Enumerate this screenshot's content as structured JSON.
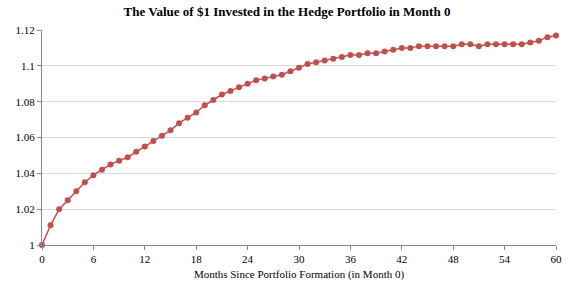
{
  "chart_data": {
    "type": "line",
    "title": "The Value of $1 Invested in the Hedge Portfolio in Month 0",
    "x_label": "Months Since Portfolio Formation (in Month 0)",
    "x": [
      0,
      1,
      2,
      3,
      4,
      5,
      6,
      7,
      8,
      9,
      10,
      11,
      12,
      13,
      14,
      15,
      16,
      17,
      18,
      19,
      20,
      21,
      22,
      23,
      24,
      25,
      26,
      27,
      28,
      29,
      30,
      31,
      32,
      33,
      34,
      35,
      36,
      37,
      38,
      39,
      40,
      41,
      42,
      43,
      44,
      45,
      46,
      47,
      48,
      49,
      50,
      51,
      52,
      53,
      54,
      55,
      56,
      57,
      58,
      59,
      60
    ],
    "values": [
      1.0,
      1.011,
      1.02,
      1.025,
      1.03,
      1.035,
      1.039,
      1.042,
      1.045,
      1.047,
      1.049,
      1.052,
      1.055,
      1.058,
      1.061,
      1.064,
      1.068,
      1.071,
      1.074,
      1.078,
      1.081,
      1.084,
      1.086,
      1.088,
      1.09,
      1.092,
      1.093,
      1.094,
      1.095,
      1.097,
      1.099,
      1.101,
      1.102,
      1.103,
      1.104,
      1.105,
      1.106,
      1.106,
      1.107,
      1.107,
      1.108,
      1.109,
      1.11,
      1.11,
      1.111,
      1.111,
      1.111,
      1.111,
      1.111,
      1.112,
      1.112,
      1.111,
      1.112,
      1.112,
      1.112,
      1.112,
      1.112,
      1.113,
      1.114,
      1.116,
      1.117
    ],
    "color": "#c0504d",
    "marker": "circle",
    "line_style": "solid",
    "xlim": [
      0,
      60
    ],
    "xticks": [
      0,
      6,
      12,
      18,
      24,
      30,
      36,
      42,
      48,
      54,
      60
    ],
    "ylim": [
      1,
      1.12
    ],
    "yticks": [
      1,
      1.02,
      1.04,
      1.06,
      1.08,
      1.1,
      1.12
    ],
    "grid": true
  }
}
